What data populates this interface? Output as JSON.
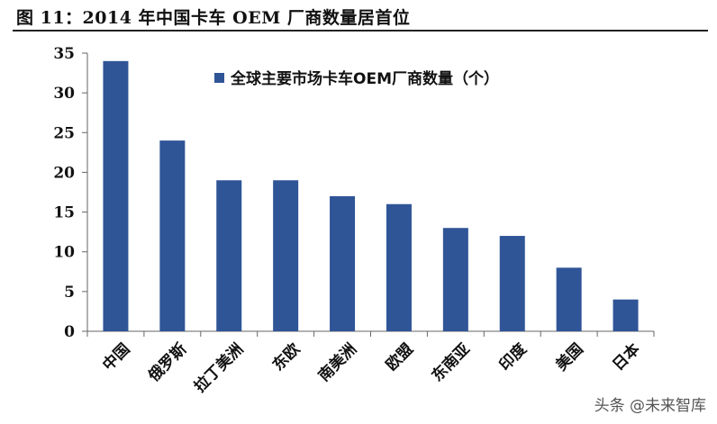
{
  "figure": {
    "title": "图 11：2014 年中国卡车 OEM 厂商数量居首位",
    "watermark": "头条 @未来智库"
  },
  "chart_data": {
    "type": "bar",
    "categories": [
      "中国",
      "俄罗斯",
      "拉丁美洲",
      "东欧",
      "南美洲",
      "欧盟",
      "东南亚",
      "印度",
      "美国",
      "日本"
    ],
    "series": [
      {
        "name": "全球主要市场卡车OEM厂商数量（个）",
        "values": [
          34,
          24,
          19,
          19,
          17,
          16,
          13,
          12,
          8,
          4
        ],
        "color": "#2f5597"
      }
    ],
    "ylim": [
      0,
      35
    ],
    "yticks": [
      "0",
      "5",
      "10",
      "15",
      "20",
      "25",
      "30",
      "35"
    ],
    "grid": false,
    "legend_position": "top-right"
  }
}
